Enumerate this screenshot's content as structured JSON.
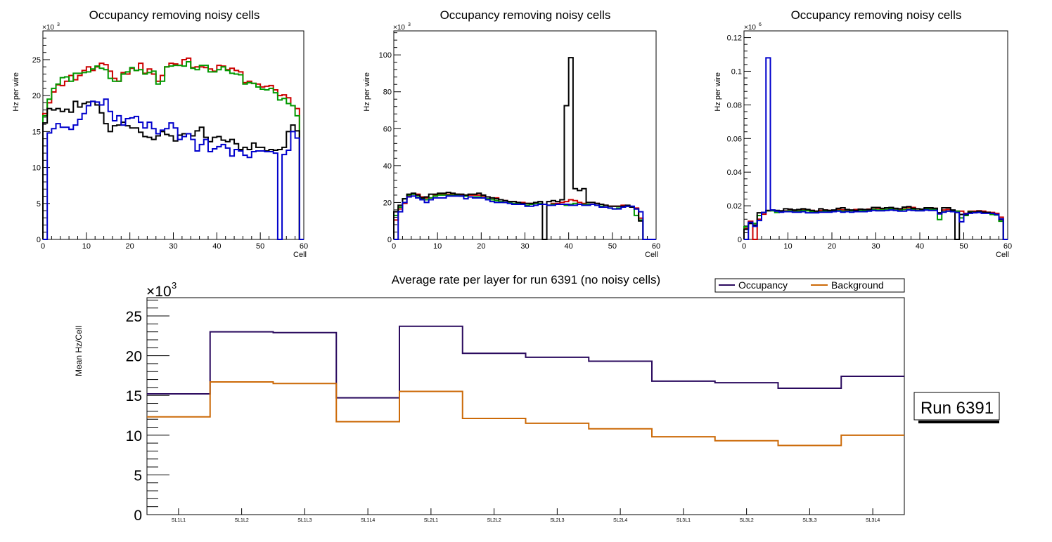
{
  "chart_data": [
    {
      "type": "histogram-step",
      "title": "Occupancy removing noisy cells",
      "xlabel": "Cell",
      "ylabel": "Hz per wire",
      "y_exponent_label": "×10",
      "y_exponent": "3",
      "xlim": [
        0,
        60
      ],
      "ylim": [
        0,
        29
      ],
      "y_scale": 1000,
      "x_ticks": [
        0,
        10,
        20,
        30,
        40,
        50,
        60
      ],
      "y_ticks": [
        0,
        5,
        10,
        15,
        20,
        25
      ],
      "bins": 60,
      "series": [
        {
          "name": "layer-red",
          "color": "#cc0000",
          "values": [
            17.5,
            19,
            20.5,
            21.5,
            21.4,
            22,
            22.8,
            22.2,
            22.8,
            23.5,
            24,
            23.5,
            24,
            24.5,
            24.3,
            23.4,
            22.4,
            22,
            23.2,
            23,
            23.8,
            23.5,
            24.5,
            23.1,
            23.7,
            23,
            22,
            22.8,
            24,
            24.5,
            24.4,
            24.2,
            25,
            25.2,
            23.9,
            24,
            24,
            23.9,
            23.7,
            23.4,
            24.2,
            24.1,
            23.6,
            23.8,
            23.5,
            23.3,
            21.8,
            22,
            21.7,
            21.6,
            21.2,
            21.3,
            21.4,
            20.8,
            20,
            20.1,
            19.7,
            18.6,
            18.2,
            0
          ]
        },
        {
          "name": "layer-green",
          "color": "#009900",
          "values": [
            17.2,
            19.5,
            21,
            21.6,
            22.5,
            22.6,
            22,
            23.1,
            23.1,
            23.2,
            23.3,
            23.7,
            24.1,
            23.8,
            23.6,
            22.4,
            22,
            22,
            23,
            23.3,
            23.9,
            23.5,
            23.6,
            23,
            23.2,
            23.4,
            21.6,
            22,
            24,
            24.1,
            24.2,
            24.2,
            24.1,
            24.7,
            23.8,
            23.6,
            24.2,
            24.2,
            23.3,
            23.3,
            23.6,
            24,
            23.5,
            23.1,
            23,
            22.9,
            21.6,
            21.8,
            21.7,
            21.2,
            20.9,
            20.8,
            21,
            20.4,
            19.4,
            19.6,
            18.9,
            18.6,
            17.2,
            0
          ]
        },
        {
          "name": "layer-black",
          "color": "#000000",
          "values": [
            16.2,
            18.2,
            18,
            18.2,
            17.8,
            18.1,
            17.7,
            19.2,
            18.4,
            18.9,
            19.1,
            19.2,
            18.7,
            17.6,
            16.1,
            15,
            15.8,
            15.9,
            16.3,
            15.8,
            15.5,
            15.5,
            14.9,
            14.3,
            14.2,
            13.9,
            14.4,
            15,
            14.6,
            14.4,
            13.7,
            14.5,
            14.7,
            14.7,
            14.4,
            15.1,
            15.6,
            14.2,
            13.6,
            14.2,
            14.3,
            13.8,
            13.6,
            13.9,
            13.3,
            12.5,
            12.8,
            12.5,
            13.4,
            12.8,
            12.8,
            12.3,
            12.5,
            12.4,
            12.5,
            12.8,
            15,
            15.9,
            15.1,
            0
          ]
        },
        {
          "name": "layer-blue",
          "color": "#0000cc",
          "values": [
            0,
            14.8,
            15.4,
            16.1,
            15.6,
            15.6,
            15.3,
            15.9,
            16.7,
            17.5,
            18.6,
            19.2,
            19.1,
            18.7,
            19.5,
            17.8,
            16.5,
            17.2,
            15.9,
            16.8,
            16.9,
            17.1,
            16.3,
            15.5,
            16.3,
            15.4,
            14.7,
            15.2,
            15.4,
            16.2,
            15.5,
            13.9,
            14.3,
            14.7,
            13.9,
            12.3,
            13.2,
            13.9,
            12.2,
            12.6,
            12.9,
            13.2,
            12.7,
            11.6,
            12.5,
            12.3,
            11.7,
            11.4,
            12.2,
            12.3,
            12.3,
            12.2,
            12.2,
            12,
            0,
            11.8,
            12.4,
            15,
            14.1,
            0
          ]
        }
      ]
    },
    {
      "type": "histogram-step",
      "title": "Occupancy removing noisy cells",
      "xlabel": "Cell",
      "ylabel": "Hz per wire",
      "y_exponent_label": "×10",
      "y_exponent": "3",
      "xlim": [
        0,
        60
      ],
      "ylim": [
        0,
        113
      ],
      "y_scale": 1000,
      "x_ticks": [
        0,
        10,
        20,
        30,
        40,
        50,
        60
      ],
      "y_ticks": [
        0,
        20,
        40,
        60,
        80,
        100
      ],
      "bins": 60,
      "series": [
        {
          "name": "layer-red",
          "color": "#cc0000",
          "values": [
            10.5,
            16.5,
            19.5,
            23.5,
            24.5,
            24.5,
            23,
            22.5,
            22.5,
            24,
            24.5,
            24.5,
            24.5,
            24.5,
            24.5,
            24,
            24,
            24,
            24,
            24,
            23.5,
            23,
            22.5,
            22.5,
            21.5,
            21,
            20.5,
            20.5,
            20,
            20,
            19.5,
            19.5,
            19.5,
            19.5,
            19,
            18.5,
            19.5,
            19.5,
            20,
            20.5,
            21.5,
            21,
            20,
            19.5,
            20,
            20,
            19.5,
            19,
            18.5,
            18,
            18,
            18,
            18.5,
            18,
            17.5,
            17,
            11.5,
            0,
            0,
            0
          ]
        },
        {
          "name": "layer-green",
          "color": "#009900",
          "values": [
            13,
            17.5,
            22,
            24,
            24.5,
            23,
            22,
            21.5,
            22.5,
            23.5,
            24,
            24,
            24,
            24,
            24,
            23.5,
            23.5,
            23,
            23,
            23,
            22.5,
            22,
            21.5,
            21,
            20.5,
            20,
            20,
            19.5,
            19.5,
            19,
            18.5,
            19,
            19.5,
            19.5,
            19,
            18.5,
            19,
            19,
            19,
            18.5,
            19,
            19.5,
            19,
            19,
            19,
            19,
            18.5,
            18,
            17.5,
            17,
            16.5,
            17,
            17.5,
            18,
            17.5,
            13,
            10.5,
            0,
            0,
            0
          ]
        },
        {
          "name": "layer-black",
          "color": "#000000",
          "values": [
            15,
            18.5,
            22,
            24.5,
            25,
            24,
            22.5,
            23,
            24.5,
            24.5,
            25,
            25,
            25.5,
            25,
            24.5,
            24.5,
            24,
            24.5,
            24.5,
            25,
            24,
            23,
            22.5,
            22,
            21.5,
            21,
            20.5,
            20.5,
            20,
            19.5,
            19.5,
            19.5,
            20,
            20.5,
            0,
            20.5,
            21,
            20.5,
            21.5,
            72.5,
            98.5,
            27.5,
            26.5,
            27.5,
            20,
            20,
            19.5,
            19,
            18.5,
            18,
            18,
            18,
            18,
            18.5,
            17.5,
            16.5,
            10,
            0,
            0,
            0
          ]
        },
        {
          "name": "layer-blue",
          "color": "#0000cc",
          "values": [
            0,
            15,
            20,
            23,
            23.5,
            22.5,
            21.5,
            20,
            21.5,
            22.5,
            22.5,
            22.5,
            23.5,
            23.5,
            23.5,
            23.5,
            22,
            23,
            22.5,
            22.5,
            22.5,
            21.5,
            20.5,
            20,
            20,
            20,
            19.5,
            19,
            19,
            19,
            18,
            18,
            18.5,
            19,
            19,
            18.5,
            18.5,
            19,
            19,
            19,
            18.5,
            18.5,
            19,
            18.5,
            18.5,
            19,
            18.5,
            17.5,
            17.5,
            17,
            16.5,
            16.5,
            17.5,
            18,
            18,
            16.5,
            15,
            0,
            0,
            0
          ]
        }
      ]
    },
    {
      "type": "histogram-step",
      "title": "Occupancy removing noisy cells",
      "xlabel": "Cell",
      "ylabel": "Hz per wire",
      "y_exponent_label": "×10",
      "y_exponent": "6",
      "xlim": [
        0,
        60
      ],
      "ylim": [
        0,
        0.124
      ],
      "y_scale": 1000000,
      "x_ticks": [
        0,
        10,
        20,
        30,
        40,
        50,
        60
      ],
      "y_ticks": [
        0,
        0.02,
        0.04,
        0.06,
        0.08,
        0.1,
        0.12
      ],
      "bins": 60,
      "series": [
        {
          "name": "layer-red",
          "color": "#cc0000",
          "values": [
            0.0065,
            0.0108,
            0,
            0.012,
            0.015,
            0.017,
            0.0172,
            0.017,
            0.0168,
            0.017,
            0.0175,
            0.0172,
            0.0175,
            0.0178,
            0.0173,
            0.0172,
            0.0168,
            0.0172,
            0.0175,
            0.0172,
            0.0172,
            0.0178,
            0.0176,
            0.0172,
            0.0174,
            0.0178,
            0.0178,
            0.0175,
            0.018,
            0.018,
            0.0185,
            0.0182,
            0.0178,
            0.018,
            0.0182,
            0.0178,
            0.0182,
            0.019,
            0.019,
            0.0182,
            0.0178,
            0.0182,
            0.0185,
            0.0185,
            0.0152,
            0.0175,
            0.0178,
            0.0172,
            0.0168,
            0.0168,
            0.0155,
            0.0168,
            0.0168,
            0.017,
            0.0168,
            0.0162,
            0.016,
            0.0155,
            0.0132,
            0
          ]
        },
        {
          "name": "layer-green",
          "color": "#009900",
          "values": [
            0.0075,
            0.0095,
            0.0095,
            0.0142,
            0.016,
            0.017,
            0.017,
            0.016,
            0.0165,
            0.0168,
            0.017,
            0.0165,
            0.0168,
            0.0172,
            0.017,
            0.0165,
            0.0165,
            0.0165,
            0.0168,
            0.0168,
            0.017,
            0.0172,
            0.0168,
            0.0168,
            0.017,
            0.017,
            0.0172,
            0.0172,
            0.0175,
            0.0178,
            0.0175,
            0.0175,
            0.0178,
            0.0182,
            0.0175,
            0.0172,
            0.0178,
            0.018,
            0.0178,
            0.0172,
            0.0175,
            0.018,
            0.0178,
            0.0178,
            0.0118,
            0.0165,
            0.0168,
            0.017,
            0.0168,
            0.0128,
            0.0142,
            0.0165,
            0.0162,
            0.0165,
            0.016,
            0.0158,
            0.0148,
            0.0145,
            0.0108,
            0
          ]
        },
        {
          "name": "layer-black",
          "color": "#000000",
          "values": [
            0.006,
            0.0095,
            0.0085,
            0.0158,
            0.016,
            0.0172,
            0.0175,
            0.0172,
            0.017,
            0.0182,
            0.018,
            0.0175,
            0.0178,
            0.0182,
            0.0178,
            0.0172,
            0.0168,
            0.0182,
            0.0175,
            0.0172,
            0.0175,
            0.0185,
            0.0188,
            0.0178,
            0.0175,
            0.0172,
            0.018,
            0.0178,
            0.0178,
            0.019,
            0.019,
            0.0185,
            0.0188,
            0.019,
            0.0185,
            0.0182,
            0.0192,
            0.0195,
            0.0185,
            0.0182,
            0.018,
            0.0188,
            0.0188,
            0.0185,
            0.0158,
            0.0188,
            0.0188,
            0.0175,
            0,
            0.0148,
            0.0148,
            0.0162,
            0.0162,
            0.0168,
            0.0162,
            0.016,
            0.0155,
            0.0148,
            0.0118,
            0
          ]
        },
        {
          "name": "layer-blue",
          "color": "#0000cc",
          "values": [
            0,
            0.0102,
            0.0078,
            0.0112,
            0.016,
            0.108,
            0.0175,
            0.0168,
            0.0162,
            0.0165,
            0.0165,
            0.0162,
            0.0162,
            0.0165,
            0.0158,
            0.0158,
            0.0158,
            0.0162,
            0.0162,
            0.0162,
            0.0165,
            0.0168,
            0.0162,
            0.0165,
            0.0162,
            0.0165,
            0.0165,
            0.0165,
            0.0168,
            0.0172,
            0.017,
            0.017,
            0.0172,
            0.0175,
            0.0172,
            0.0168,
            0.0168,
            0.0175,
            0.0172,
            0.017,
            0.017,
            0.0175,
            0.0172,
            0.0172,
            0.0152,
            0.0162,
            0.0168,
            0.0165,
            0.016,
            0.0105,
            0.0152,
            0.0155,
            0.0158,
            0.016,
            0.0155,
            0.0155,
            0.0155,
            0.0148,
            0.0122,
            0
          ]
        }
      ]
    },
    {
      "type": "histogram-step",
      "title": "Average rate per layer for run 6391 (no noisy cells)",
      "xlabel": "",
      "ylabel": "Mean Hz/Cell",
      "y_exponent_label": "×10",
      "y_exponent": "3",
      "ylim": [
        0,
        27.3
      ],
      "y_scale": 1000,
      "y_ticks": [
        0,
        5,
        10,
        15,
        20,
        25
      ],
      "categories": [
        "SL1L1",
        "SL1L2",
        "SL1L3",
        "SL1L4",
        "SL2L1",
        "SL2L2",
        "SL2L3",
        "SL2L4",
        "SL3L1",
        "SL3L2",
        "SL3L3",
        "SL3L4"
      ],
      "series": [
        {
          "name": "Occupancy",
          "color": "#2a0a5e",
          "values": [
            15.2,
            23.0,
            22.9,
            14.7,
            23.7,
            20.3,
            19.8,
            19.3,
            16.8,
            16.6,
            15.9,
            17.4
          ]
        },
        {
          "name": "Background",
          "color": "#cc6a08",
          "values": [
            12.3,
            16.7,
            16.5,
            11.7,
            15.5,
            12.1,
            11.5,
            10.8,
            9.8,
            9.3,
            8.7,
            10.0
          ]
        }
      ],
      "legend": {
        "position": "top-right",
        "entries": [
          "Occupancy",
          "Background"
        ]
      }
    }
  ],
  "annotation": {
    "run_label": "Run 6391"
  }
}
